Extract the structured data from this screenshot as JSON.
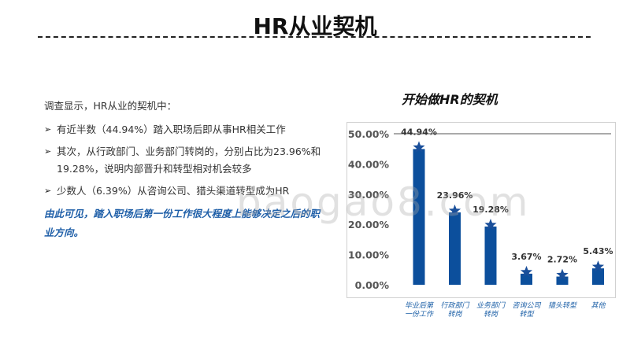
{
  "page": {
    "title": "HR从业契机",
    "intro": "调查显示，HR从业的契机中：",
    "bullets": [
      "有近半数（44.94%）踏入职场后即从事HR相关工作",
      "其次，从行政部门、业务部门转岗的，分别占比为23.96%和19.28%，说明内部晋升和转型相对机会较多",
      "少数人（6.39%）从咨询公司、猎头渠道转型成为HR"
    ],
    "conclusion": "由此可见，踏入职场后第一份工作很大程度上能够决定之后的职业方向。",
    "watermark": "baogao8.com"
  },
  "chart_data": {
    "type": "bar",
    "title": "开始做HR的契机",
    "categories": [
      "毕业后第一份工作",
      "行政部门转岗",
      "业务部门转岗",
      "咨询公司转型",
      "猎头转型",
      "其他"
    ],
    "values": [
      44.94,
      23.96,
      19.28,
      3.67,
      2.72,
      5.43
    ],
    "data_labels": [
      "44.94%",
      "23.96%",
      "19.28%",
      "3.67%",
      "2.72%",
      "5.43%"
    ],
    "y_ticks": [
      "0.00%",
      "10.00%",
      "20.00%",
      "30.00%",
      "40.00%",
      "50.00%"
    ],
    "ylim": [
      0,
      50
    ],
    "bar_color": "#0c4f9c",
    "label_color": "#1a5ea6",
    "grid": false
  }
}
